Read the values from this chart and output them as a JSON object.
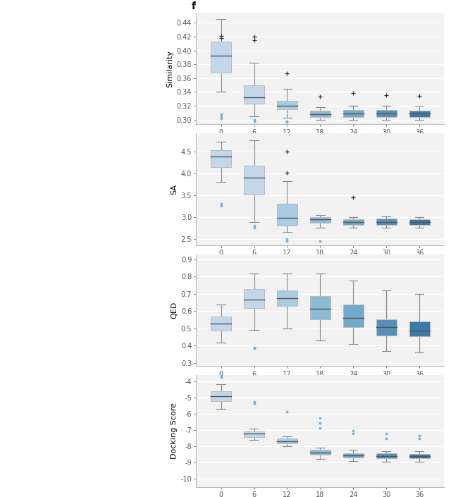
{
  "epochs": [
    0,
    6,
    12,
    18,
    24,
    30,
    36
  ],
  "epoch_labels": [
    "0",
    "6",
    "12",
    "18",
    "24",
    "30",
    "36"
  ],
  "panel_label": "f",
  "similarity": {
    "ylabel": "Similarity",
    "ylim": [
      0.293,
      0.455
    ],
    "yticks": [
      0.3,
      0.32,
      0.34,
      0.36,
      0.38,
      0.4,
      0.42,
      0.44
    ],
    "ytick_labels": [
      "0.30",
      "0.32",
      "0.34",
      "0.36",
      "0.38",
      "0.40",
      "0.42",
      "0.44"
    ],
    "boxes": [
      {
        "q1": 0.368,
        "median": 0.392,
        "q3": 0.413,
        "whislo": 0.34,
        "whishi": 0.445,
        "fliers_high": [
          0.421,
          0.418
        ],
        "fliers_low": [
          0.302,
          0.308,
          0.305
        ]
      },
      {
        "q1": 0.323,
        "median": 0.332,
        "q3": 0.35,
        "whislo": 0.305,
        "whishi": 0.382,
        "fliers_high": [
          0.42,
          0.415
        ],
        "fliers_low": [
          0.298,
          0.3
        ]
      },
      {
        "q1": 0.315,
        "median": 0.32,
        "q3": 0.327,
        "whislo": 0.303,
        "whishi": 0.344,
        "fliers_high": [
          0.367
        ],
        "fliers_low": [
          0.298,
          0.296
        ]
      },
      {
        "q1": 0.304,
        "median": 0.308,
        "q3": 0.313,
        "whislo": 0.3,
        "whishi": 0.318,
        "fliers_high": [
          0.333
        ],
        "fliers_low": []
      },
      {
        "q1": 0.304,
        "median": 0.309,
        "q3": 0.314,
        "whislo": 0.3,
        "whishi": 0.32,
        "fliers_high": [
          0.338
        ],
        "fliers_low": []
      },
      {
        "q1": 0.304,
        "median": 0.309,
        "q3": 0.314,
        "whislo": 0.3,
        "whishi": 0.32,
        "fliers_high": [
          0.335
        ],
        "fliers_low": []
      },
      {
        "q1": 0.304,
        "median": 0.309,
        "q3": 0.313,
        "whislo": 0.3,
        "whishi": 0.319,
        "fliers_high": [
          0.334
        ],
        "fliers_low": []
      }
    ]
  },
  "sa": {
    "ylabel": "SA",
    "ylim": [
      2.35,
      4.92
    ],
    "yticks": [
      2.5,
      3.0,
      3.5,
      4.0,
      4.5
    ],
    "ytick_labels": [
      "2.5",
      "3.0",
      "3.5",
      "4.0",
      "4.5"
    ],
    "boxes": [
      {
        "q1": 4.15,
        "median": 4.38,
        "q3": 4.53,
        "whislo": 3.8,
        "whishi": 4.72,
        "fliers_high": [],
        "fliers_low": [
          3.25,
          3.3
        ]
      },
      {
        "q1": 3.52,
        "median": 3.9,
        "q3": 4.18,
        "whislo": 2.88,
        "whishi": 4.76,
        "fliers_high": [],
        "fliers_low": [
          2.75,
          2.8
        ]
      },
      {
        "q1": 2.8,
        "median": 2.98,
        "q3": 3.3,
        "whislo": 2.65,
        "whishi": 3.82,
        "fliers_high": [
          4.5,
          4.02
        ],
        "fliers_low": [
          2.45,
          2.5
        ]
      },
      {
        "q1": 2.87,
        "median": 2.94,
        "q3": 3.0,
        "whislo": 2.76,
        "whishi": 3.04,
        "fliers_high": [],
        "fliers_low": [
          2.44
        ]
      },
      {
        "q1": 2.82,
        "median": 2.88,
        "q3": 2.94,
        "whislo": 2.75,
        "whishi": 2.99,
        "fliers_high": [
          3.45
        ],
        "fliers_low": []
      },
      {
        "q1": 2.82,
        "median": 2.89,
        "q3": 2.96,
        "whislo": 2.75,
        "whishi": 3.01,
        "fliers_high": [],
        "fliers_low": []
      },
      {
        "q1": 2.82,
        "median": 2.88,
        "q3": 2.95,
        "whislo": 2.75,
        "whishi": 3.0,
        "fliers_high": [],
        "fliers_low": []
      }
    ]
  },
  "qed": {
    "ylabel": "QED",
    "ylim": [
      0.28,
      0.93
    ],
    "yticks": [
      0.3,
      0.4,
      0.5,
      0.6,
      0.7,
      0.8,
      0.9
    ],
    "ytick_labels": [
      "0.3",
      "0.4",
      "0.5",
      "0.6",
      "0.7",
      "0.8",
      "0.9"
    ],
    "boxes": [
      {
        "q1": 0.488,
        "median": 0.528,
        "q3": 0.568,
        "whislo": 0.415,
        "whishi": 0.638,
        "fliers_high": [],
        "fliers_low": []
      },
      {
        "q1": 0.618,
        "median": 0.668,
        "q3": 0.728,
        "whislo": 0.49,
        "whishi": 0.818,
        "fliers_high": [],
        "fliers_low": [
          0.385,
          0.39
        ]
      },
      {
        "q1": 0.628,
        "median": 0.675,
        "q3": 0.718,
        "whislo": 0.498,
        "whishi": 0.818,
        "fliers_high": [],
        "fliers_low": []
      },
      {
        "q1": 0.552,
        "median": 0.612,
        "q3": 0.688,
        "whislo": 0.428,
        "whishi": 0.818,
        "fliers_high": [],
        "fliers_low": []
      },
      {
        "q1": 0.508,
        "median": 0.562,
        "q3": 0.638,
        "whislo": 0.408,
        "whishi": 0.778,
        "fliers_high": [],
        "fliers_low": []
      },
      {
        "q1": 0.458,
        "median": 0.508,
        "q3": 0.552,
        "whislo": 0.368,
        "whishi": 0.718,
        "fliers_high": [],
        "fliers_low": []
      },
      {
        "q1": 0.452,
        "median": 0.488,
        "q3": 0.538,
        "whislo": 0.358,
        "whishi": 0.698,
        "fliers_high": [],
        "fliers_low": []
      }
    ]
  },
  "docking": {
    "ylabel": "Docking Score",
    "ylim": [
      -10.5,
      -3.6
    ],
    "yticks": [
      -10,
      -9,
      -8,
      -7,
      -6,
      -5,
      -4
    ],
    "ytick_labels": [
      "-10",
      "-9",
      "-8",
      "-7",
      "-6",
      "-5",
      "-4"
    ],
    "boxes": [
      {
        "q1": -5.22,
        "median": -4.88,
        "q3": -4.58,
        "whislo": -5.68,
        "whishi": -4.18,
        "fliers_high": [],
        "fliers_low": [
          -3.65,
          -3.72
        ]
      },
      {
        "q1": -7.4,
        "median": -7.22,
        "q3": -7.08,
        "whislo": -7.6,
        "whishi": -6.88,
        "fliers_high": [],
        "fliers_low": [
          -5.25,
          -5.35
        ]
      },
      {
        "q1": -7.8,
        "median": -7.68,
        "q3": -7.52,
        "whislo": -7.98,
        "whishi": -7.38,
        "fliers_high": [],
        "fliers_low": [
          -5.85
        ]
      },
      {
        "q1": -8.52,
        "median": -8.38,
        "q3": -8.22,
        "whislo": -8.75,
        "whishi": -8.05,
        "fliers_high": [],
        "fliers_low": [
          -6.25,
          -6.55,
          -6.85
        ]
      },
      {
        "q1": -8.68,
        "median": -8.55,
        "q3": -8.4,
        "whislo": -8.88,
        "whishi": -8.22,
        "fliers_high": [],
        "fliers_low": [
          -7.05,
          -7.22
        ]
      },
      {
        "q1": -8.72,
        "median": -8.58,
        "q3": -8.44,
        "whislo": -8.92,
        "whishi": -8.28,
        "fliers_high": [],
        "fliers_low": [
          -7.52,
          -7.22
        ]
      },
      {
        "q1": -8.74,
        "median": -8.6,
        "q3": -8.46,
        "whislo": -8.94,
        "whishi": -8.3,
        "fliers_high": [],
        "fliers_low": [
          -7.52,
          -7.32
        ]
      }
    ]
  },
  "colors_by_epoch": [
    "#C2D8EA",
    "#C2D8EA",
    "#AACCE0",
    "#8CBCD5",
    "#72AACC",
    "#5590B8",
    "#3E7AA8"
  ],
  "bg_color": "#F2F2F2",
  "grid_color": "#FFFFFF",
  "spine_color": "#BBBBBB",
  "median_color": "#555555",
  "whisker_color": "#888888",
  "flier_dot_color": "#6AAED6",
  "flier_plus_color": "#333333",
  "figure_bg": "#ffffff",
  "panel_fontsize": 10,
  "label_fontsize": 8,
  "tick_fontsize": 7
}
